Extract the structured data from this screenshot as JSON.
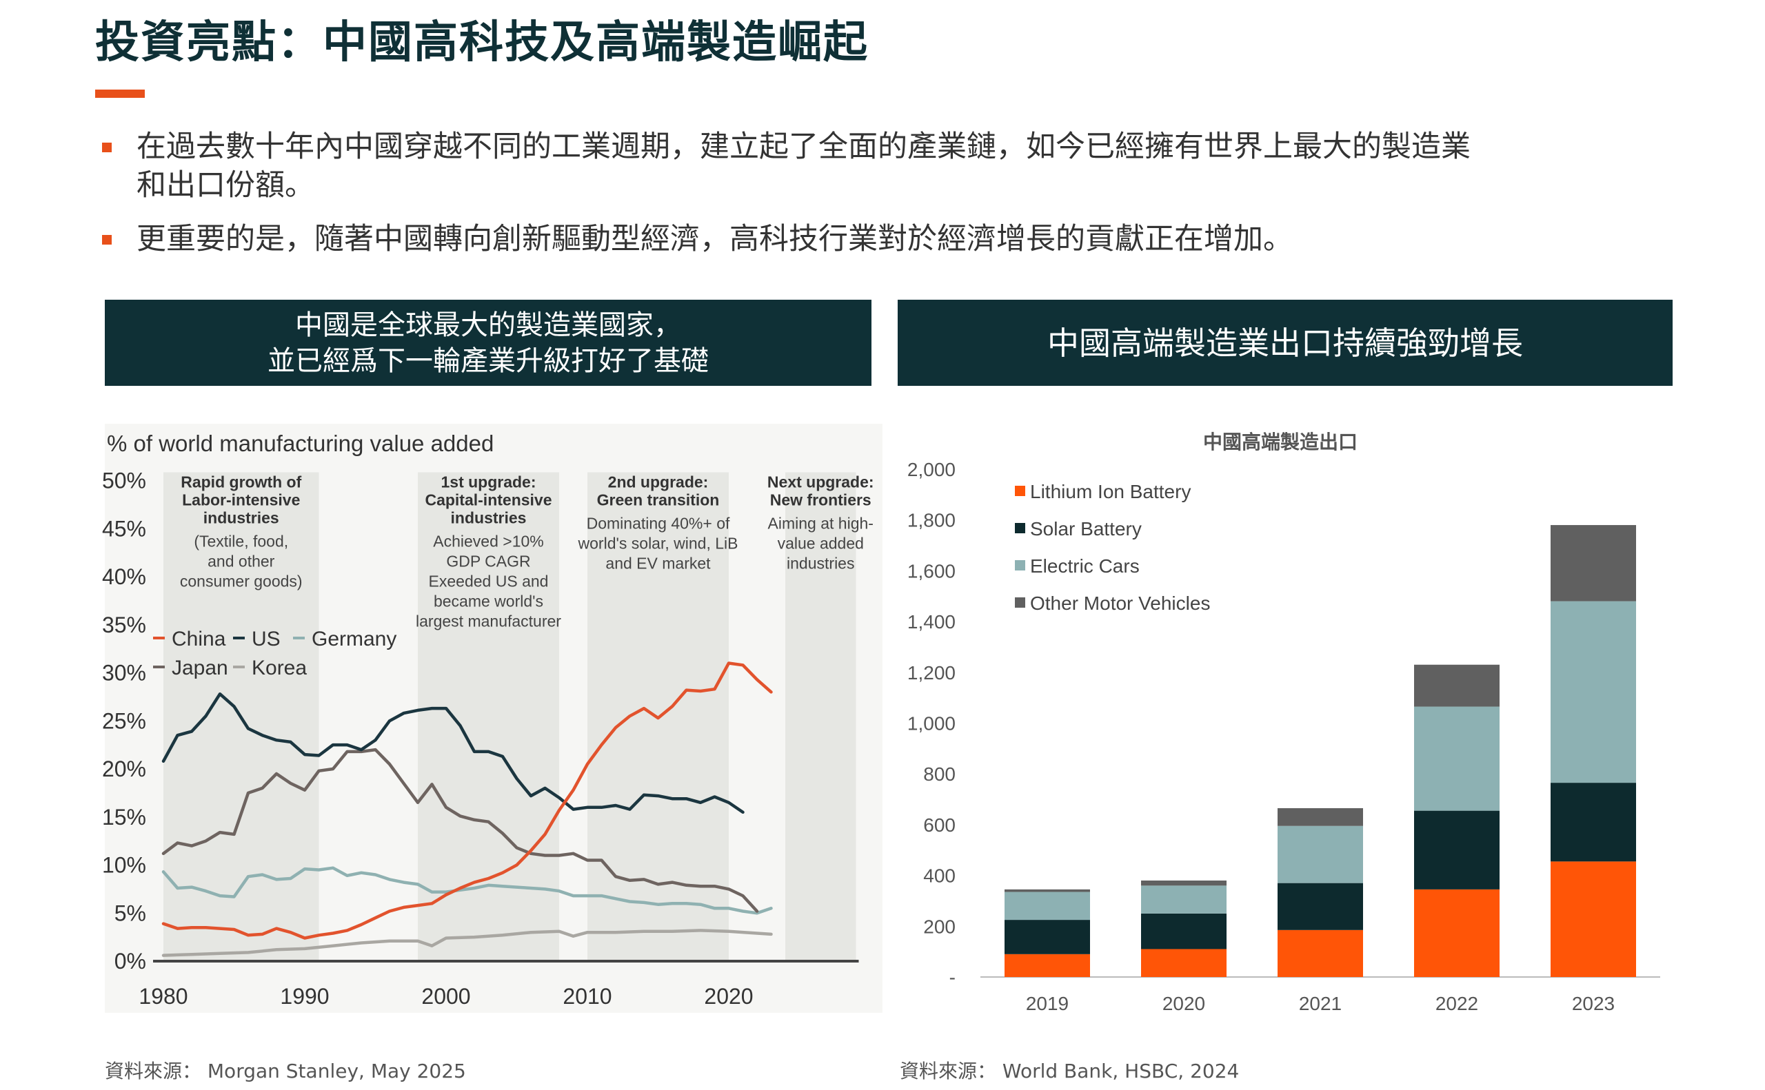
{
  "title": "投資亮點：中國高科技及高端製造崛起",
  "bullets": [
    {
      "line1": "在過去數十年內中國穿越不同的工業週期，建立起了全面的產業鏈，如今已經擁有世界上最大的製造業",
      "line2": "和出口份額。"
    },
    {
      "line1": "更重要的是，隨著中國轉向創新驅動型經濟，高科技行業對於經濟增長的貢獻正在增加。",
      "line2": ""
    }
  ],
  "panel_left": {
    "header_line1": "中國是全球最大的製造業國家，",
    "header_line2": "並已經爲下一輪產業升級打好了基礎",
    "source": "資料來源： Morgan Stanley, May 2025"
  },
  "panel_right": {
    "header": "中國高端製造業出口持續強勁增長",
    "source": "資料來源： World Bank, HSBC, 2024"
  },
  "chart_data": [
    {
      "type": "line",
      "title": "",
      "ylabel": "% of world manufacturing value added",
      "xlim": [
        1980,
        2029
      ],
      "ylim": [
        0,
        50
      ],
      "x_ticks": [
        1980,
        1990,
        2000,
        2010,
        2020
      ],
      "y_ticks": [
        "0%",
        "5%",
        "10%",
        "15%",
        "20%",
        "25%",
        "30%",
        "35%",
        "40%",
        "45%",
        "50%"
      ],
      "legend_position": "middle-left",
      "colors": {
        "China": "#e2532d",
        "US": "#1b3640",
        "Germany": "#8fb1b1",
        "Japan": "#6e6460",
        "Korea": "#a9a7a2"
      },
      "shaded_periods": [
        {
          "start": 1980,
          "end": 1991,
          "lines": [
            "Rapid growth of",
            "Labor-intensive",
            "industries"
          ],
          "sub": [
            "(Textile, food,",
            "and other",
            "consumer goods)"
          ]
        },
        {
          "start": 1998,
          "end": 2008,
          "lines": [
            "1st upgrade:",
            "Capital-intensive",
            "industries"
          ],
          "sub": [
            "Achieved >10%",
            "GDP CAGR",
            "Exeeded US and",
            "became world's",
            "largest manufacturer"
          ]
        },
        {
          "start": 2010,
          "end": 2020,
          "lines": [
            "2nd upgrade:",
            "Green transition"
          ],
          "sub": [
            "Dominating 40%+ of",
            "world's solar, wind, LiB",
            "and EV market"
          ]
        },
        {
          "start": 2024,
          "end": 2029,
          "lines": [
            "Next upgrade:",
            "New frontiers"
          ],
          "sub": [
            "Aiming at high-",
            "value added",
            "industries"
          ]
        }
      ],
      "series": [
        {
          "name": "China",
          "x": [
            1980,
            1981,
            1982,
            1983,
            1984,
            1985,
            1986,
            1987,
            1988,
            1989,
            1990,
            1991,
            1992,
            1993,
            1994,
            1995,
            1996,
            1997,
            1998,
            1999,
            2000,
            2001,
            2002,
            2003,
            2004,
            2005,
            2006,
            2007,
            2008,
            2009,
            2010,
            2011,
            2012,
            2013,
            2014,
            2015,
            2016,
            2017,
            2018,
            2019,
            2020,
            2021,
            2022,
            2023
          ],
          "y": [
            3.9,
            3.4,
            3.5,
            3.5,
            3.4,
            3.3,
            2.7,
            2.8,
            3.4,
            3.0,
            2.4,
            2.7,
            2.9,
            3.2,
            3.8,
            4.5,
            5.2,
            5.6,
            5.8,
            6.0,
            6.9,
            7.6,
            8.2,
            8.6,
            9.2,
            10.0,
            11.5,
            13.2,
            15.7,
            17.8,
            20.5,
            22.5,
            24.3,
            25.5,
            26.3,
            25.3,
            26.5,
            28.2,
            28.1,
            28.3,
            31.0,
            30.8,
            29.3,
            28.0
          ]
        },
        {
          "name": "US",
          "x": [
            1980,
            1981,
            1982,
            1983,
            1984,
            1985,
            1986,
            1987,
            1988,
            1989,
            1990,
            1991,
            1992,
            1993,
            1994,
            1995,
            1996,
            1997,
            1998,
            1999,
            2000,
            2001,
            2002,
            2003,
            2004,
            2005,
            2006,
            2007,
            2008,
            2009,
            2010,
            2011,
            2012,
            2013,
            2014,
            2015,
            2016,
            2017,
            2018,
            2019,
            2020,
            2021
          ],
          "y": [
            20.8,
            23.5,
            23.9,
            25.5,
            27.8,
            26.5,
            24.2,
            23.5,
            23.0,
            22.8,
            21.5,
            21.4,
            22.5,
            22.5,
            22.0,
            23.0,
            25.0,
            25.8,
            26.1,
            26.3,
            26.3,
            24.5,
            21.8,
            21.8,
            21.3,
            19.0,
            17.2,
            18.0,
            17.0,
            15.8,
            16.0,
            16.0,
            16.2,
            15.8,
            17.3,
            17.2,
            16.9,
            16.9,
            16.5,
            17.1,
            16.5,
            15.5
          ]
        },
        {
          "name": "Germany",
          "x": [
            1980,
            1981,
            1982,
            1983,
            1984,
            1985,
            1986,
            1987,
            1988,
            1989,
            1990,
            1991,
            1992,
            1993,
            1994,
            1995,
            1996,
            1997,
            1998,
            1999,
            2000,
            2001,
            2002,
            2003,
            2004,
            2005,
            2006,
            2007,
            2008,
            2009,
            2010,
            2011,
            2012,
            2013,
            2014,
            2015,
            2016,
            2017,
            2018,
            2019,
            2020,
            2021,
            2022,
            2023
          ],
          "y": [
            9.3,
            7.6,
            7.7,
            7.3,
            6.8,
            6.7,
            8.8,
            9.0,
            8.5,
            8.6,
            9.6,
            9.5,
            9.7,
            8.9,
            9.2,
            9.0,
            8.5,
            8.2,
            8.0,
            7.2,
            7.2,
            7.4,
            7.6,
            7.9,
            7.8,
            7.7,
            7.6,
            7.5,
            7.3,
            6.8,
            6.8,
            6.8,
            6.5,
            6.2,
            6.1,
            5.9,
            6.0,
            6.0,
            5.9,
            5.5,
            5.5,
            5.2,
            5.0,
            5.5
          ]
        },
        {
          "name": "Japan",
          "x": [
            1980,
            1981,
            1982,
            1983,
            1984,
            1985,
            1986,
            1987,
            1988,
            1989,
            1990,
            1991,
            1992,
            1993,
            1994,
            1995,
            1996,
            1997,
            1998,
            1999,
            2000,
            2001,
            2002,
            2003,
            2004,
            2005,
            2006,
            2007,
            2008,
            2009,
            2010,
            2011,
            2012,
            2013,
            2014,
            2015,
            2016,
            2017,
            2018,
            2019,
            2020,
            2021,
            2022
          ],
          "y": [
            11.2,
            12.3,
            12.0,
            12.5,
            13.4,
            13.2,
            17.5,
            18.0,
            19.5,
            18.5,
            17.8,
            19.8,
            20.0,
            21.8,
            21.8,
            22.0,
            20.5,
            18.5,
            16.5,
            18.4,
            16.0,
            15.1,
            14.7,
            14.5,
            13.3,
            11.8,
            11.2,
            11.0,
            11.0,
            11.2,
            10.5,
            10.5,
            8.8,
            8.4,
            8.5,
            8.0,
            8.2,
            7.9,
            7.8,
            7.8,
            7.5,
            6.8,
            5.2
          ]
        },
        {
          "name": "Korea",
          "x": [
            1980,
            1982,
            1984,
            1986,
            1988,
            1990,
            1992,
            1994,
            1996,
            1998,
            1999,
            2000,
            2002,
            2004,
            2006,
            2008,
            2009,
            2010,
            2012,
            2014,
            2016,
            2018,
            2020,
            2022,
            2023
          ],
          "y": [
            0.6,
            0.7,
            0.8,
            0.9,
            1.2,
            1.3,
            1.6,
            1.9,
            2.1,
            2.1,
            1.6,
            2.4,
            2.5,
            2.7,
            3.0,
            3.1,
            2.6,
            3.0,
            3.0,
            3.1,
            3.1,
            3.2,
            3.1,
            2.9,
            2.8
          ]
        }
      ]
    },
    {
      "type": "bar",
      "stacked": true,
      "title": "中國高端製造出口",
      "categories": [
        "2019",
        "2020",
        "2021",
        "2022",
        "2023"
      ],
      "ylim": [
        0,
        2000
      ],
      "y_ticks": [
        "-",
        "200",
        "400",
        "600",
        "800",
        "1,000",
        "1,200",
        "1,400",
        "1,600",
        "1,800",
        "2,000"
      ],
      "legend_position": "top-left",
      "series": [
        {
          "name": "Lithium Ion Battery",
          "color": "#ff5507",
          "values": [
            90,
            110,
            185,
            345,
            455
          ]
        },
        {
          "name": "Solar Battery",
          "color": "#0d2a2e",
          "values": [
            135,
            140,
            185,
            310,
            310
          ]
        },
        {
          "name": "Electric Cars",
          "color": "#8db1b3",
          "values": [
            110,
            110,
            225,
            410,
            715
          ]
        },
        {
          "name": "Other Motor Vehicles",
          "color": "#606060",
          "values": [
            10,
            20,
            70,
            165,
            300
          ]
        }
      ]
    }
  ]
}
